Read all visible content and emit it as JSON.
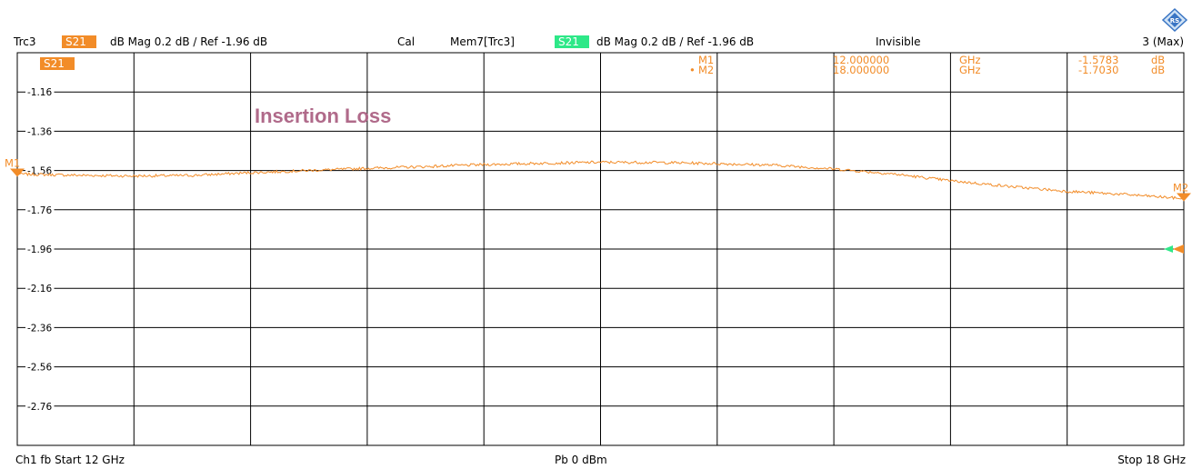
{
  "header": {
    "trace": "Trc3",
    "trace_badge": "S21",
    "trace_format": "dB Mag  0.2 dB /  Ref -1.96 dB",
    "cal": "Cal",
    "mem": "Mem7[Trc3]",
    "mem_badge": "S21",
    "mem_format": "dB Mag  0.2 dB /  Ref -1.96 dB",
    "mem_state": "Invisible",
    "count": "3 (Max)"
  },
  "footer": {
    "left": "Ch1  fb  Start  12 GHz",
    "center": "Pb   0 dBm",
    "right": "Stop  18 GHz"
  },
  "markers": {
    "table": [
      {
        "name": "M1",
        "freq": "12.000000",
        "freq_unit": "GHz",
        "value": "-1.5783",
        "unit": "dB"
      },
      {
        "name": "M2",
        "freq": "18.000000",
        "freq_unit": "GHz",
        "value": "-1.7030",
        "unit": "dB"
      }
    ],
    "active_bullet": "•"
  },
  "colors": {
    "trace": "#f28c28",
    "trace_badge": "#f28c28",
    "mem_badge": "#2ee888",
    "annotation": "#b06a8a",
    "ref_mem": "#2ee888",
    "grid": "#000000"
  },
  "logo_icon": "rs-diamond-icon",
  "chart_data": {
    "type": "line",
    "title": "",
    "annotation": "Insertion Loss",
    "xlabel": "",
    "ylabel": "",
    "x_unit": "GHz",
    "y_unit": "dB",
    "xlim": [
      12,
      18
    ],
    "ylim": [
      -2.96,
      -0.96
    ],
    "ref_level": -1.96,
    "trace_label": "S21",
    "ytick_labels": [
      "-1.16",
      "-1.36",
      "-1.56",
      "-1.76",
      "-1.96",
      "-2.16",
      "-2.36",
      "-2.56",
      "-2.76"
    ],
    "ytick_values": [
      -1.16,
      -1.36,
      -1.56,
      -1.76,
      -1.96,
      -2.16,
      -2.36,
      -2.56,
      -2.76
    ],
    "x_divisions": 10,
    "grid": true,
    "series": [
      {
        "x": [
          12.0,
          12.3,
          12.6,
          12.9,
          13.2,
          13.5,
          13.8,
          14.1,
          14.4,
          14.7,
          15.0,
          15.3,
          15.6,
          15.9,
          16.2,
          16.5,
          16.8,
          17.1,
          17.4,
          17.7,
          18.0
        ],
        "values": [
          -1.578,
          -1.584,
          -1.588,
          -1.585,
          -1.571,
          -1.56,
          -1.549,
          -1.54,
          -1.53,
          -1.523,
          -1.518,
          -1.519,
          -1.525,
          -1.533,
          -1.552,
          -1.577,
          -1.612,
          -1.641,
          -1.666,
          -1.682,
          -1.703
        ]
      }
    ],
    "markers": [
      {
        "name": "M1",
        "x": 12.0,
        "y": -1.5783
      },
      {
        "name": "M2",
        "x": 18.0,
        "y": -1.703
      }
    ]
  }
}
